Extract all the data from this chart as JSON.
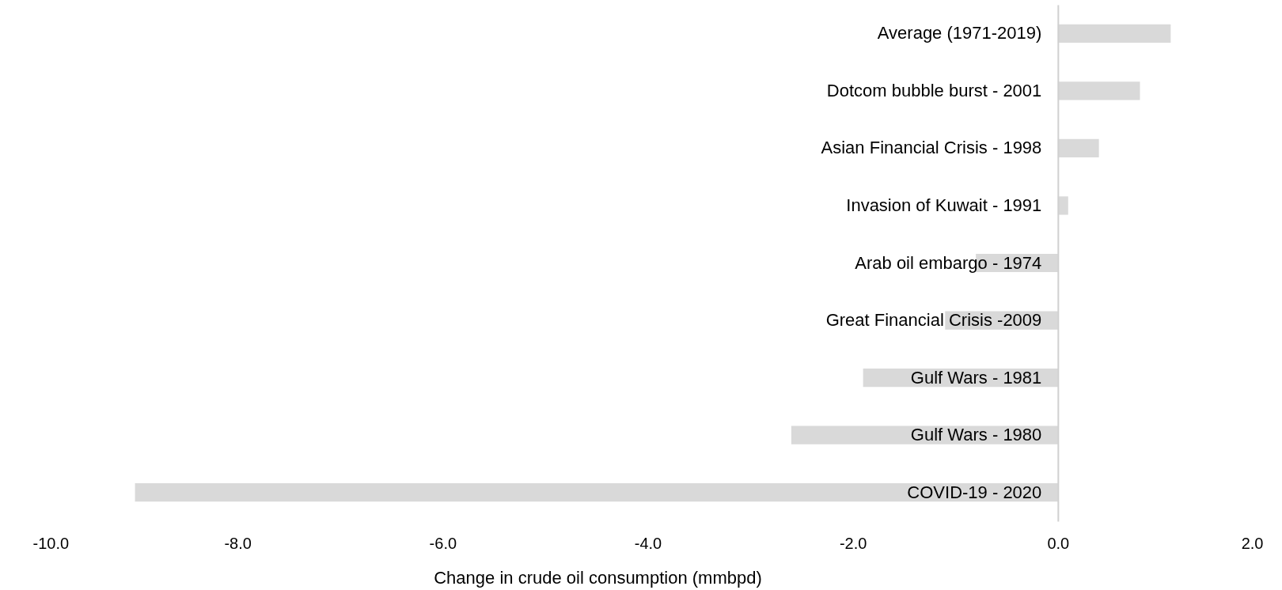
{
  "chart_data": {
    "type": "bar",
    "orientation": "horizontal",
    "xlabel": "Change in crude oil consumption (mmbpd)",
    "categories": [
      "Average (1971-2019)",
      "Dotcom bubble burst - 2001",
      "Asian Financial Crisis - 1998",
      "Invasion of Kuwait - 1991",
      "Arab oil embargo - 1974",
      "Great Financial Crisis -2009",
      "Gulf Wars - 1981",
      "Gulf Wars - 1980",
      "COVID-19 - 2020"
    ],
    "values": [
      1.1,
      0.8,
      0.4,
      0.1,
      -0.8,
      -1.1,
      -1.9,
      -2.6,
      -9.0
    ],
    "color": "#d9d9d9",
    "xlim": [
      -10,
      2
    ],
    "xticks": [
      {
        "value": -10,
        "label": "-10.0"
      },
      {
        "value": -8,
        "label": "-8.0"
      },
      {
        "value": -6,
        "label": "-6.0"
      },
      {
        "value": -4,
        "label": "-4.0"
      },
      {
        "value": -2,
        "label": "-2.0"
      },
      {
        "value": 0,
        "label": "0.0"
      },
      {
        "value": 2,
        "label": "2.0"
      }
    ],
    "grid": false
  }
}
